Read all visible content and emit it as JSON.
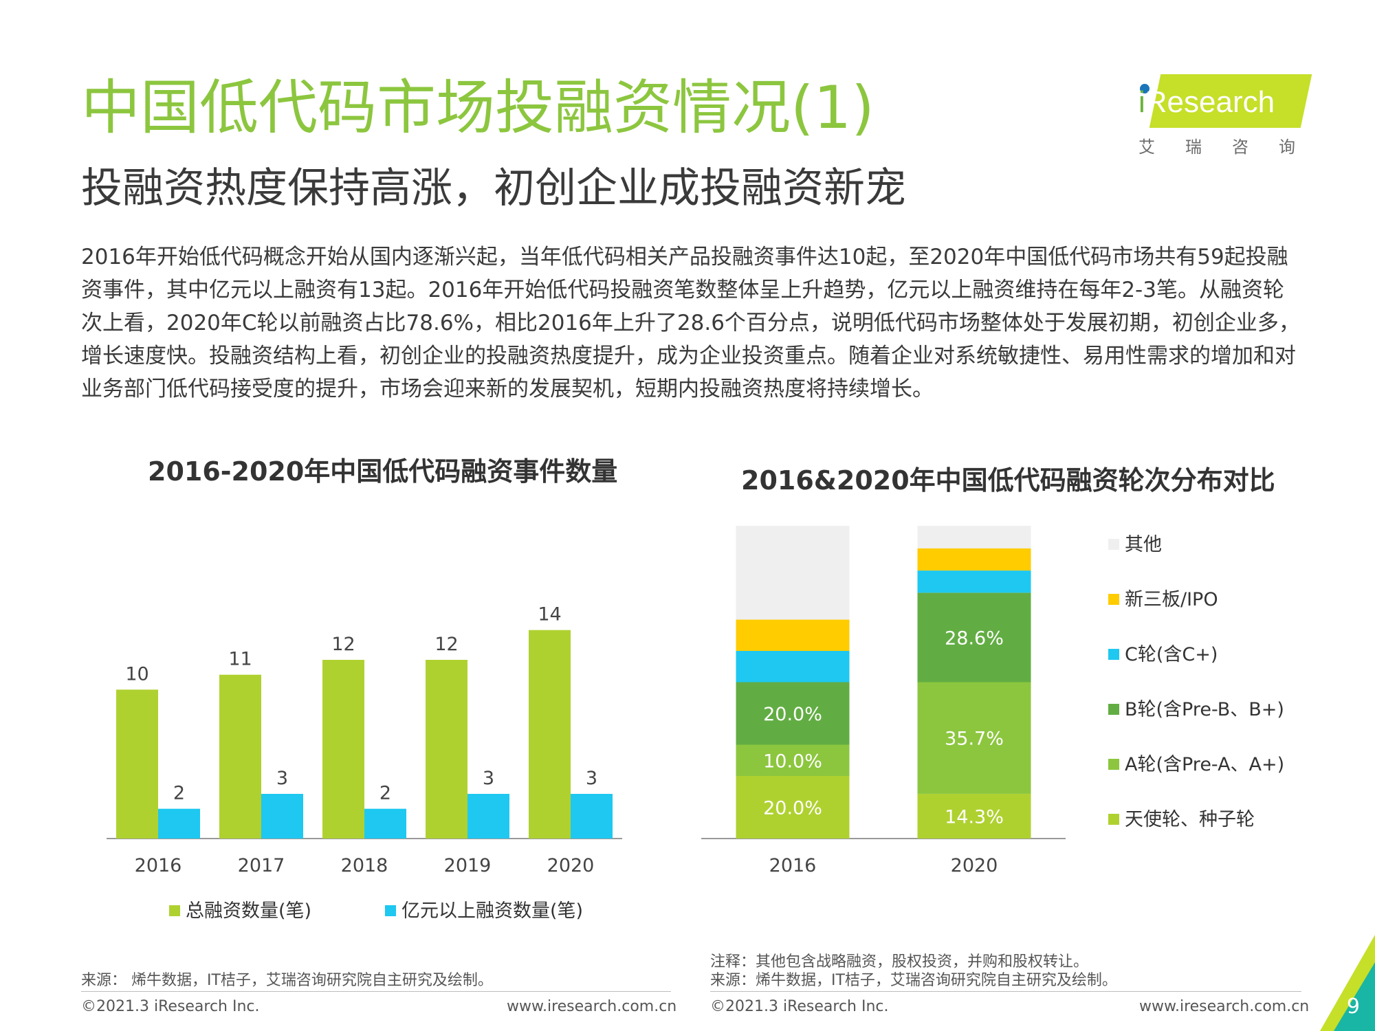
{
  "header": {
    "title": "中国低代码市场投融资情况(1)",
    "subtitle": "投融资热度保持高涨，初创企业成投融资新宠",
    "intro": "2016年开始低代码概念开始从国内逐渐兴起，当年低代码相关产品投融资事件达10起，至2020年中国低代码市场共有59起投融资事件，其中亿元以上融资有13起。2016年开始低代码投融资笔数整体呈上升趋势，亿元以上融资维持在每年2-3笔。从融资轮次上看，2020年C轮以前融资占比78.6%，相比2016年上升了28.6个百分点，说明低代码市场整体处于发展初期，初创企业多，增长速度快。投融资结构上看，初创企业的投融资热度提升，成为企业投资重点。随着企业对系统敏捷性、易用性需求的增加和对业务部门低代码接受度的提升，市场会迎来新的发展契机，短期内投融资热度将持续增长。"
  },
  "logo": {
    "text_i": "i",
    "text_rest": "Research",
    "cn": "艾瑞咨询",
    "band_color": "#c6df28"
  },
  "chart_data": [
    {
      "type": "bar",
      "title": "2016-2020年中国低代码融资事件数量",
      "categories": [
        "2016",
        "2017",
        "2018",
        "2019",
        "2020"
      ],
      "series": [
        {
          "name": "总融资数量(笔)",
          "values": [
            10,
            11,
            12,
            12,
            14
          ],
          "color": "#afd130"
        },
        {
          "name": "亿元以上融资数量(笔)",
          "values": [
            2,
            3,
            2,
            3,
            3
          ],
          "color": "#1ec8f0"
        }
      ],
      "ylim": [
        0,
        15
      ],
      "grid": false,
      "legend": "bottom"
    },
    {
      "type": "bar",
      "stacked": true,
      "title": "2016&2020年中国低代码融资轮次分布对比",
      "categories": [
        "2016",
        "2020"
      ],
      "series": [
        {
          "name": "天使轮、种子轮",
          "values": [
            20.0,
            14.3
          ],
          "labels": [
            "20.0%",
            "14.3%"
          ],
          "color": "#afd130"
        },
        {
          "name": "A轮(含Pre-A、A+)",
          "values": [
            10.0,
            35.7
          ],
          "labels": [
            "10.0%",
            "35.7%"
          ],
          "color": "#8cc63f"
        },
        {
          "name": "B轮(含Pre-B、B+)",
          "values": [
            20.0,
            28.6
          ],
          "labels": [
            "20.0%",
            "28.6%"
          ],
          "color": "#62ad43"
        },
        {
          "name": "C轮(含C+)",
          "values": [
            10.0,
            7.1
          ],
          "labels": [
            "",
            ""
          ],
          "color": "#1ec8f0"
        },
        {
          "name": "新三板/IPO",
          "values": [
            10.0,
            7.1
          ],
          "labels": [
            "",
            ""
          ],
          "color": "#ffcc00"
        },
        {
          "name": "其他",
          "values": [
            30.0,
            7.2
          ],
          "labels": [
            "",
            ""
          ],
          "color": "#efefef"
        }
      ],
      "ylim": [
        0,
        100
      ],
      "grid": false,
      "legend": "right"
    }
  ],
  "notes": {
    "left_source": "来源： 烯牛数据，IT桔子，艾瑞咨询研究院自主研究及绘制。",
    "right_note": "注释：其他包含战略融资，股权投资，并购和股权转让。",
    "right_source": "来源：烯牛数据，IT桔子，艾瑞咨询研究院自主研究及绘制。"
  },
  "footer": {
    "copyright_left": "©2021.3 iResearch Inc.",
    "url_left": "www.iresearch.com.cn",
    "copyright_right": "©2021.3 iResearch Inc.",
    "url_right": "www.iresearch.com.cn",
    "page_number": "9"
  }
}
